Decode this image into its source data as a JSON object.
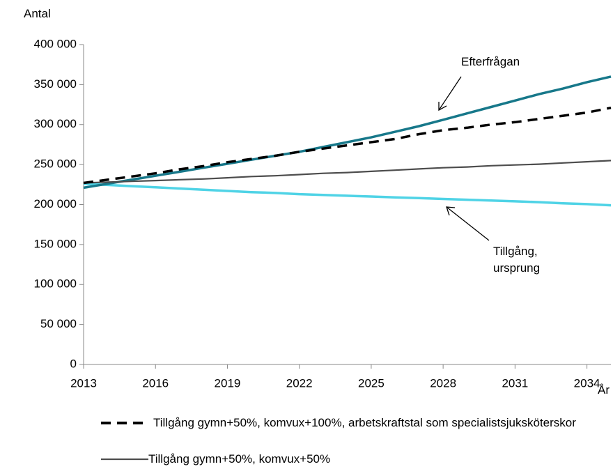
{
  "chart_data": {
    "type": "line",
    "y_label": "Antal",
    "x_label": "År",
    "x": [
      2013,
      2014,
      2015,
      2016,
      2017,
      2018,
      2019,
      2020,
      2021,
      2022,
      2023,
      2024,
      2025,
      2026,
      2027,
      2028,
      2029,
      2030,
      2031,
      2032,
      2033,
      2034,
      2035
    ],
    "xlim": [
      2013,
      2035
    ],
    "xticks": [
      2013,
      2016,
      2019,
      2022,
      2025,
      2028,
      2031,
      2034
    ],
    "ylim": [
      0,
      400000
    ],
    "yticks": [
      0,
      {
        "value": 50000,
        "label": "50 000"
      },
      {
        "value": 100000,
        "label": "100 000"
      },
      {
        "value": 150000,
        "label": "150 000"
      },
      {
        "value": 200000,
        "label": "200 000"
      },
      {
        "value": 250000,
        "label": "250 000"
      },
      {
        "value": 300000,
        "label": "300 000"
      },
      {
        "value": 350000,
        "label": "350 000"
      },
      {
        "value": 400000,
        "label": "400 000"
      }
    ],
    "grid": false,
    "series": [
      {
        "name": "Tillgång gymn+50%, komvux+100%, arbetskraftstal som specialistsjuksköterskor",
        "color": "#000000",
        "dashed": true,
        "values": [
          227000,
          231000,
          235000,
          239000,
          244000,
          248000,
          253000,
          257000,
          261000,
          266000,
          270000,
          274000,
          278000,
          282000,
          288000,
          293000,
          296000,
          300000,
          303000,
          307000,
          311000,
          315000,
          321000
        ]
      },
      {
        "name": "Tillgång gymn+50%, komvux+50%",
        "color": "#4d4d4d",
        "values": [
          227000,
          228000,
          229000,
          230000,
          231000,
          232000,
          233500,
          235000,
          236000,
          237500,
          239000,
          240000,
          241500,
          243000,
          244500,
          246000,
          247000,
          248500,
          249500,
          250500,
          252000,
          253500,
          255000
        ]
      },
      {
        "name": "Efterfrågan",
        "color": "#17788a",
        "values": [
          221000,
          226000,
          231000,
          236000,
          241000,
          246000,
          251000,
          256000,
          261000,
          266000,
          272000,
          278000,
          284000,
          291000,
          298000,
          306000,
          314000,
          322000,
          330000,
          338000,
          345000,
          353000,
          360000
        ]
      },
      {
        "name": "Tillgång, ursprung",
        "color": "#4fd3e6",
        "values": [
          226000,
          224500,
          223000,
          221500,
          220000,
          218500,
          217000,
          215500,
          214500,
          213000,
          212000,
          211000,
          210000,
          209000,
          208000,
          207000,
          206000,
          205000,
          204000,
          203000,
          201500,
          200500,
          199000
        ]
      }
    ]
  }
}
